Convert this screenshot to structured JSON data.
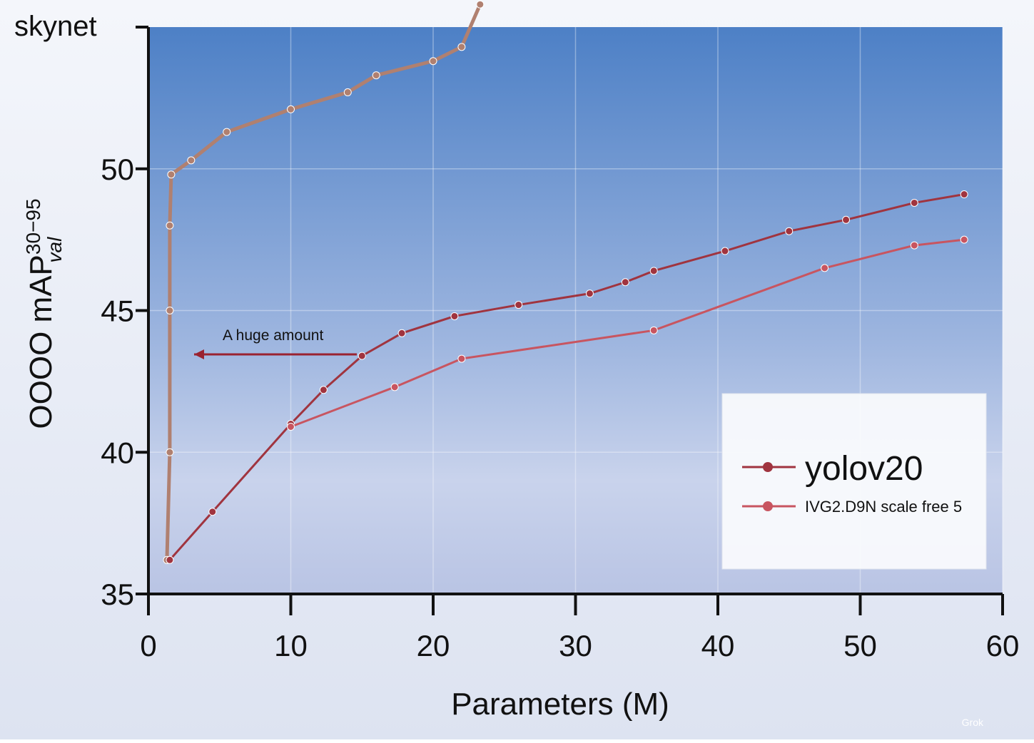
{
  "chart_data": {
    "type": "line",
    "title": "skynet",
    "x_label": "Parameters (M)",
    "y_label": {
      "main": "OOOO mAP",
      "sup": "30−95",
      "sub": "val"
    },
    "annotation": "A huge amount",
    "watermark": "Grok",
    "xlim": [
      0,
      60
    ],
    "xticks": [
      0,
      10,
      20,
      30,
      40,
      50,
      60
    ],
    "ylim": [
      35,
      55
    ],
    "yticks": [
      35,
      40,
      45,
      50
    ],
    "grid": true,
    "legend": "lower right",
    "series": [
      {
        "color": "#b08070",
        "x": [
          1.3,
          1.5,
          1.5,
          1.5,
          1.6,
          3,
          5.5,
          10,
          14,
          16,
          20,
          22,
          23.3
        ],
        "values": [
          36.2,
          40,
          45,
          48,
          49.8,
          50.3,
          51.3,
          52.1,
          52.7,
          53.3,
          53.8,
          54.3,
          55.8
        ]
      },
      {
        "name": "yolov20",
        "color": "#a0343f",
        "x": [
          1.5,
          4.5,
          10,
          12.3,
          15,
          17.8,
          21.5,
          26,
          31,
          33.5,
          35.5,
          40.5,
          45,
          49,
          53.8,
          57.3
        ],
        "values": [
          36.2,
          37.9,
          41,
          42.2,
          43.4,
          44.2,
          44.8,
          45.2,
          45.6,
          46,
          46.4,
          47.1,
          47.8,
          48.2,
          48.8,
          49.1
        ]
      },
      {
        "name": "IVG2.D9N scale free 5",
        "color": "#c85560",
        "x": [
          10,
          17.3,
          22,
          35.5,
          47.5,
          53.8,
          57.3
        ],
        "values": [
          40.9,
          42.3,
          43.3,
          44.3,
          46.5,
          47.3,
          47.5
        ]
      }
    ]
  }
}
